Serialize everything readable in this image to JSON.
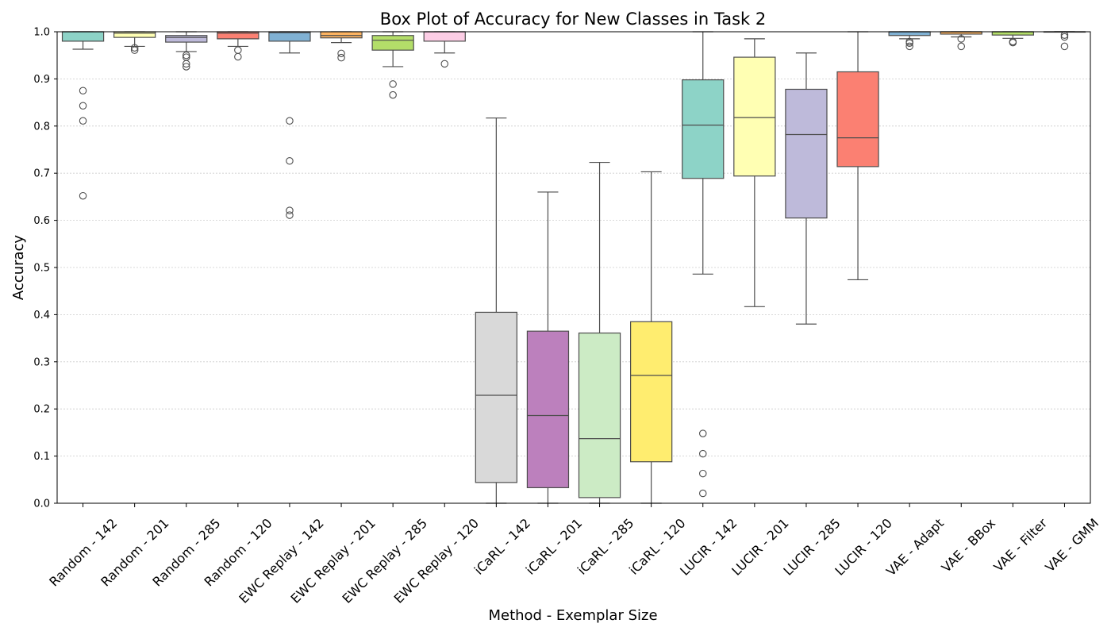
{
  "chart_data": {
    "type": "box",
    "title": "Box Plot of Accuracy for New Classes in Task 2",
    "xlabel": "Method - Exemplar Size",
    "ylabel": "Accuracy",
    "ylim": [
      0.0,
      1.0
    ],
    "yticks": [
      0.0,
      0.1,
      0.2,
      0.3,
      0.4,
      0.5,
      0.6,
      0.7,
      0.8,
      0.9,
      1.0
    ],
    "ytick_labels": [
      "0.0",
      "0.1",
      "0.2",
      "0.3",
      "0.4",
      "0.5",
      "0.6",
      "0.7",
      "0.8",
      "0.9",
      "1.0"
    ],
    "grid": "y-dotted",
    "boxes": [
      {
        "label": "Random - 142",
        "color": "#8dd3c7",
        "whisker_low": 0.963,
        "q1": 0.98,
        "median": 1.0,
        "q3": 1.0,
        "whisker_high": 1.0,
        "outliers": [
          0.875,
          0.843,
          0.811,
          0.652
        ]
      },
      {
        "label": "Random - 201",
        "color": "#ffffb3",
        "whisker_low": 0.969,
        "q1": 0.988,
        "median": 0.997,
        "q3": 1.0,
        "whisker_high": 1.0,
        "outliers": [
          0.966,
          0.961
        ]
      },
      {
        "label": "Random - 285",
        "color": "#bebada",
        "whisker_low": 0.958,
        "q1": 0.978,
        "median": 0.988,
        "q3": 0.992,
        "whisker_high": 1.0,
        "outliers": [
          0.95,
          0.946,
          0.932,
          0.926
        ]
      },
      {
        "label": "Random - 120",
        "color": "#fb8072",
        "whisker_low": 0.969,
        "q1": 0.985,
        "median": 0.997,
        "q3": 1.0,
        "whisker_high": 1.0,
        "outliers": [
          0.961,
          0.947
        ]
      },
      {
        "label": "EWC Replay - 142",
        "color": "#80b1d3",
        "whisker_low": 0.955,
        "q1": 0.98,
        "median": 0.998,
        "q3": 1.0,
        "whisker_high": 1.0,
        "outliers": [
          0.811,
          0.726,
          0.621,
          0.611
        ]
      },
      {
        "label": "EWC Replay - 201",
        "color": "#fdb462",
        "whisker_low": 0.977,
        "q1": 0.987,
        "median": 0.992,
        "q3": 1.0,
        "whisker_high": 1.0,
        "outliers": [
          0.954,
          0.945
        ]
      },
      {
        "label": "EWC Replay - 285",
        "color": "#b3de69",
        "whisker_low": 0.926,
        "q1": 0.961,
        "median": 0.982,
        "q3": 0.992,
        "whisker_high": 1.0,
        "outliers": [
          0.889,
          0.866
        ]
      },
      {
        "label": "EWC Replay - 120",
        "color": "#fccde5",
        "whisker_low": 0.955,
        "q1": 0.98,
        "median": 1.0,
        "q3": 1.0,
        "whisker_high": 1.0,
        "outliers": [
          0.932
        ]
      },
      {
        "label": "iCaRL - 142",
        "color": "#d9d9d9",
        "whisker_low": 0.0,
        "q1": 0.044,
        "median": 0.229,
        "q3": 0.405,
        "whisker_high": 0.817,
        "outliers": []
      },
      {
        "label": "iCaRL - 201",
        "color": "#bc80bd",
        "whisker_low": 0.0,
        "q1": 0.033,
        "median": 0.186,
        "q3": 0.365,
        "whisker_high": 0.66,
        "outliers": []
      },
      {
        "label": "iCaRL - 285",
        "color": "#ccebc5",
        "whisker_low": 0.0,
        "q1": 0.012,
        "median": 0.137,
        "q3": 0.361,
        "whisker_high": 0.723,
        "outliers": []
      },
      {
        "label": "iCaRL - 120",
        "color": "#ffed6f",
        "whisker_low": 0.0,
        "q1": 0.088,
        "median": 0.271,
        "q3": 0.385,
        "whisker_high": 0.703,
        "outliers": []
      },
      {
        "label": "LUCIR - 142",
        "color": "#8dd3c7",
        "whisker_low": 0.486,
        "q1": 0.689,
        "median": 0.802,
        "q3": 0.898,
        "whisker_high": 1.0,
        "outliers": [
          0.148,
          0.105,
          0.063,
          0.021
        ]
      },
      {
        "label": "LUCIR - 201",
        "color": "#ffffb3",
        "whisker_low": 0.417,
        "q1": 0.694,
        "median": 0.818,
        "q3": 0.946,
        "whisker_high": 0.985,
        "outliers": []
      },
      {
        "label": "LUCIR - 285",
        "color": "#bebada",
        "whisker_low": 0.38,
        "q1": 0.605,
        "median": 0.782,
        "q3": 0.878,
        "whisker_high": 0.955,
        "outliers": []
      },
      {
        "label": "LUCIR - 120",
        "color": "#fb8072",
        "whisker_low": 0.474,
        "q1": 0.714,
        "median": 0.775,
        "q3": 0.915,
        "whisker_high": 1.0,
        "outliers": []
      },
      {
        "label": "VAE - Adapt",
        "color": "#80b1d3",
        "whisker_low": 0.985,
        "q1": 0.992,
        "median": 1.0,
        "q3": 1.0,
        "whisker_high": 1.0,
        "outliers": [
          0.979,
          0.976,
          0.969
        ]
      },
      {
        "label": "VAE - BBox",
        "color": "#fdb462",
        "whisker_low": 0.989,
        "q1": 0.995,
        "median": 1.0,
        "q3": 1.0,
        "whisker_high": 1.0,
        "outliers": [
          0.985,
          0.969
        ]
      },
      {
        "label": "VAE - Filter",
        "color": "#b3de69",
        "whisker_low": 0.986,
        "q1": 0.993,
        "median": 1.0,
        "q3": 1.0,
        "whisker_high": 1.0,
        "outliers": [
          0.979,
          0.977
        ]
      },
      {
        "label": "VAE - GMM",
        "color": "#fccde5",
        "whisker_low": 1.0,
        "q1": 1.0,
        "median": 1.0,
        "q3": 1.0,
        "whisker_high": 1.0,
        "outliers": [
          0.993,
          0.989,
          0.969
        ]
      }
    ]
  }
}
